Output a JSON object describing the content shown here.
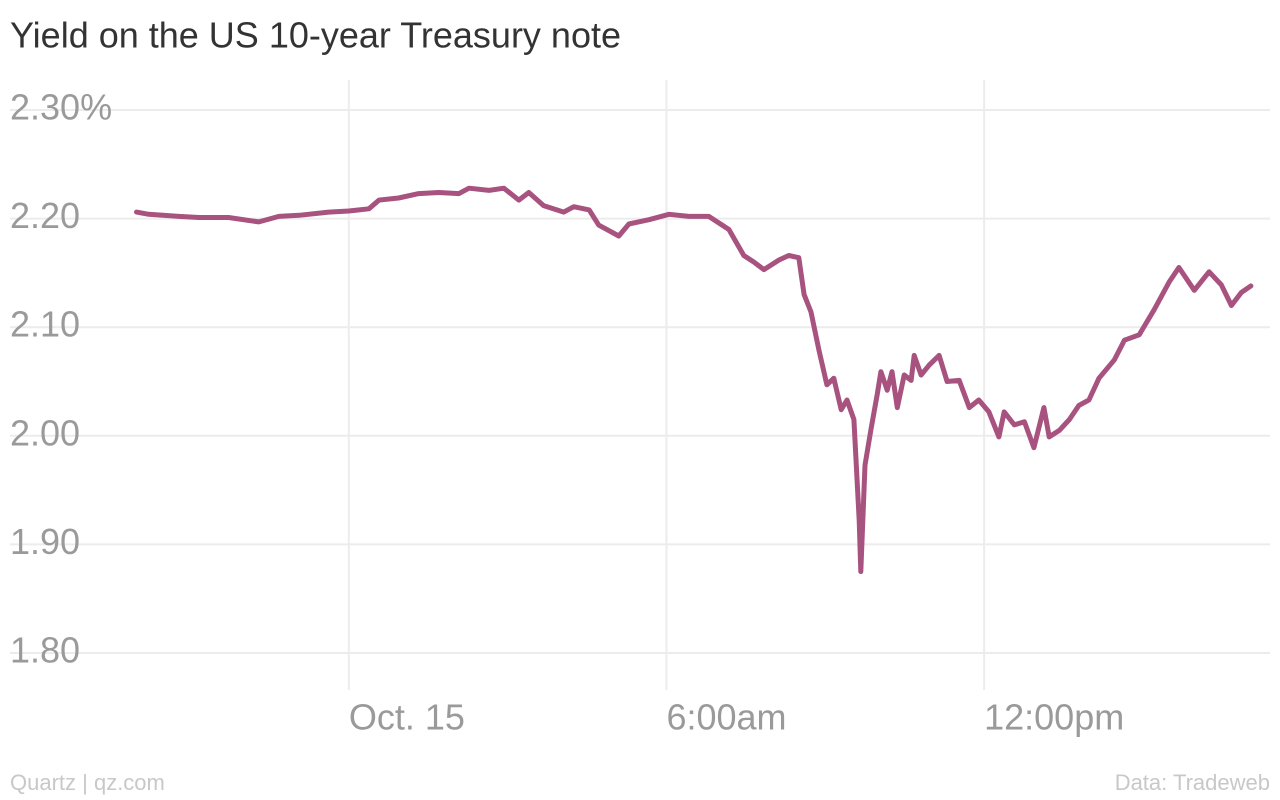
{
  "chart_data": {
    "type": "line",
    "title": "Yield on the US 10-year Treasury note",
    "source_left": "Quartz | qz.com",
    "source_right": "Data: Tradeweb",
    "color": "#a8527f",
    "grid": true,
    "x": [
      -4.01,
      -3.78,
      -3.21,
      -2.83,
      -2.27,
      -1.7,
      -1.32,
      -0.94,
      -0.38,
      0,
      0.38,
      0.57,
      0.94,
      1.32,
      1.7,
      2.08,
      2.27,
      2.65,
      2.93,
      3.21,
      3.4,
      3.68,
      4.06,
      4.25,
      4.54,
      4.72,
      5.1,
      5.29,
      5.67,
      6.05,
      6.42,
      6.8,
      7.18,
      7.46,
      7.65,
      7.84,
      8.13,
      8.31,
      8.5,
      8.6,
      8.73,
      8.88,
      9.03,
      9.16,
      9.3,
      9.41,
      9.54,
      9.64,
      9.67,
      9.75,
      9.86,
      9.98,
      10.05,
      10.17,
      10.26,
      10.36,
      10.49,
      10.62,
      10.68,
      10.81,
      10.96,
      11.15,
      11.3,
      11.53,
      11.72,
      11.9,
      12.09,
      12.28,
      12.38,
      12.57,
      12.76,
      12.94,
      13.13,
      13.23,
      13.42,
      13.61,
      13.79,
      13.98,
      14.17,
      14.46,
      14.65,
      14.93,
      15.21,
      15.5,
      15.68,
      15.97,
      16.25,
      16.48,
      16.67,
      16.86,
      17.04
    ],
    "values": [
      2.206,
      2.204,
      2.202,
      2.201,
      2.201,
      2.197,
      2.202,
      2.203,
      2.206,
      2.207,
      2.209,
      2.217,
      2.219,
      2.223,
      2.224,
      2.223,
      2.228,
      2.226,
      2.228,
      2.217,
      2.224,
      2.212,
      2.206,
      2.211,
      2.208,
      2.194,
      2.184,
      2.195,
      2.199,
      2.204,
      2.202,
      2.202,
      2.19,
      2.166,
      2.16,
      2.153,
      2.162,
      2.166,
      2.164,
      2.13,
      2.114,
      2.079,
      2.047,
      2.053,
      2.024,
      2.033,
      2.015,
      1.922,
      1.875,
      1.973,
      2.005,
      2.038,
      2.059,
      2.042,
      2.059,
      2.026,
      2.056,
      2.051,
      2.074,
      2.056,
      2.065,
      2.074,
      2.05,
      2.051,
      2.026,
      2.033,
      2.022,
      1.999,
      2.022,
      2.01,
      2.013,
      1.989,
      2.026,
      1.999,
      2.005,
      2.015,
      2.028,
      2.033,
      2.053,
      2.07,
      2.088,
      2.093,
      2.116,
      2.142,
      2.155,
      2.134,
      2.151,
      2.139,
      2.12,
      2.132,
      2.138
    ],
    "xlim": [
      -6.4,
      17.4
    ],
    "xticks": [
      {
        "value": 0,
        "label": "Oct. 15"
      },
      {
        "value": 6,
        "label": "6:00am"
      },
      {
        "value": 12,
        "label": "12:00pm"
      }
    ],
    "ylim": [
      1.8,
      2.3
    ],
    "yticks": [
      {
        "value": 1.8,
        "label": "1.80"
      },
      {
        "value": 1.9,
        "label": "1.90"
      },
      {
        "value": 2.0,
        "label": "2.00"
      },
      {
        "value": 2.1,
        "label": "2.10"
      },
      {
        "value": 2.2,
        "label": "2.20"
      },
      {
        "value": 2.3,
        "label": "2.30%"
      }
    ]
  }
}
